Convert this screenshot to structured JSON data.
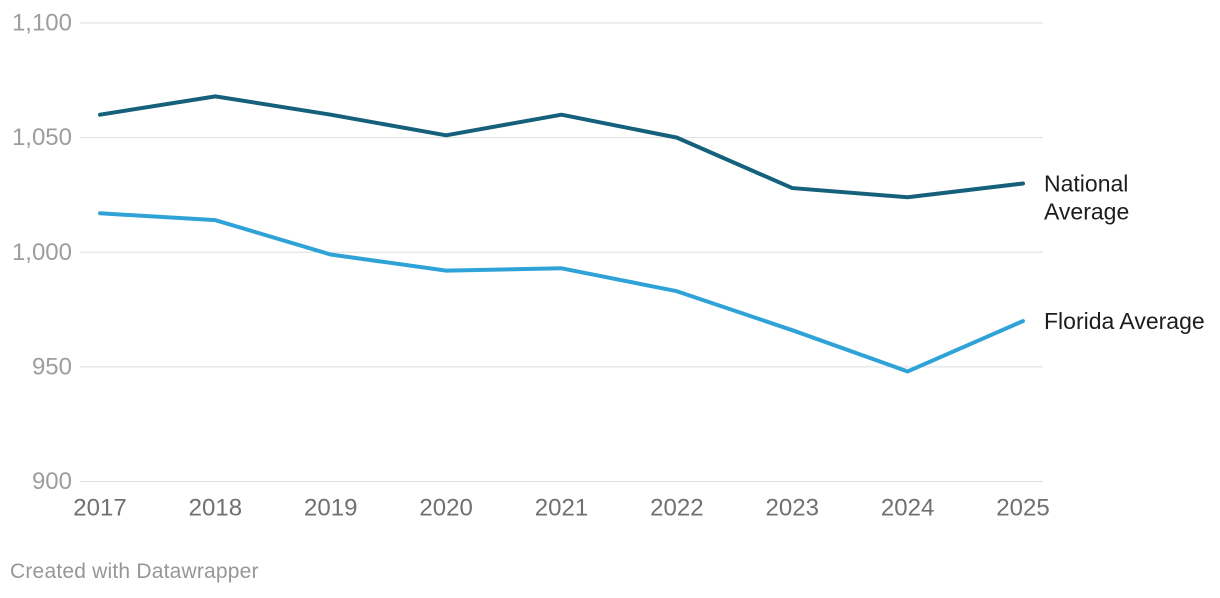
{
  "chart_data": {
    "type": "line",
    "title": "",
    "xlabel": "",
    "ylabel": "",
    "x": [
      2017,
      2018,
      2019,
      2020,
      2021,
      2022,
      2023,
      2024,
      2025
    ],
    "series": [
      {
        "name": "National Average",
        "label_lines": [
          "National",
          "Average"
        ],
        "color": "#15607a",
        "values": [
          1060,
          1068,
          1060,
          1051,
          1060,
          1050,
          1028,
          1024,
          1030
        ]
      },
      {
        "name": "Florida Average",
        "label_lines": [
          "Florida Average"
        ],
        "color": "#2fa3d7",
        "values": [
          1017,
          1014,
          999,
          992,
          993,
          983,
          966,
          948,
          970
        ]
      }
    ],
    "ylim": [
      900,
      1100
    ],
    "y_ticks": [
      1100,
      1050,
      1000,
      950,
      900
    ],
    "y_tick_labels": [
      "1,100",
      "1,050",
      "1,000",
      "950",
      "900"
    ],
    "grid": "horizontal-only",
    "legend_position": "right-of-line-ends",
    "colors": {
      "gridline": "#dddddd",
      "y_tick_text": "#9d9d9d",
      "x_tick_text": "#707070",
      "series_label_text": "#1d1d1d",
      "background": "#ffffff"
    }
  },
  "footer": {
    "credit": "Created with Datawrapper"
  }
}
